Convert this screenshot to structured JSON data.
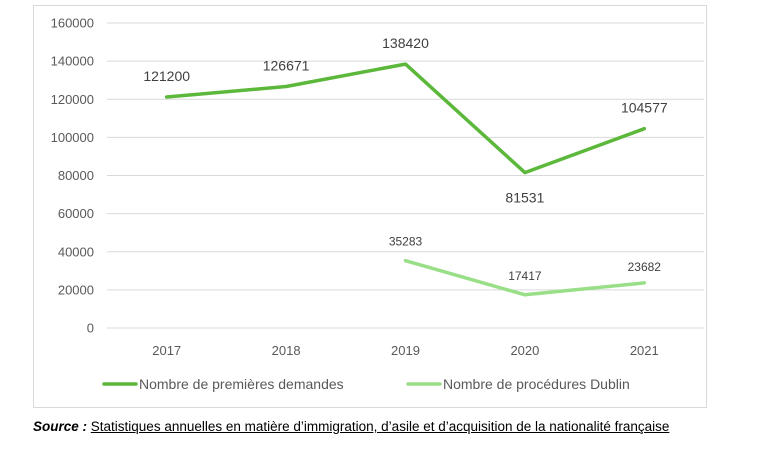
{
  "chart_data": {
    "type": "line",
    "title": "",
    "xlabel": "",
    "ylabel": "",
    "categories": [
      "2017",
      "2018",
      "2019",
      "2020",
      "2021"
    ],
    "ylim": [
      0,
      160000
    ],
    "yticks": [
      0,
      20000,
      40000,
      60000,
      80000,
      100000,
      120000,
      140000,
      160000
    ],
    "grid": true,
    "legend_position": "bottom",
    "series": [
      {
        "name": "Nombre de premières demandes",
        "color": "#5cb83a",
        "values": [
          121200,
          126671,
          138420,
          81531,
          104577
        ],
        "labels": [
          "121200",
          "126671",
          "138420",
          "81531",
          "104577"
        ]
      },
      {
        "name": "Nombre de procédures Dublin",
        "color": "#99df88",
        "values": [
          null,
          null,
          35283,
          17417,
          23682
        ],
        "labels": [
          "",
          "",
          "35283",
          "17417",
          "23682"
        ]
      }
    ]
  },
  "source": {
    "label": "Source :",
    "text": "Statistiques annuelles en matière d’immigration, d’asile et d’acquisition de la nationalité française"
  }
}
